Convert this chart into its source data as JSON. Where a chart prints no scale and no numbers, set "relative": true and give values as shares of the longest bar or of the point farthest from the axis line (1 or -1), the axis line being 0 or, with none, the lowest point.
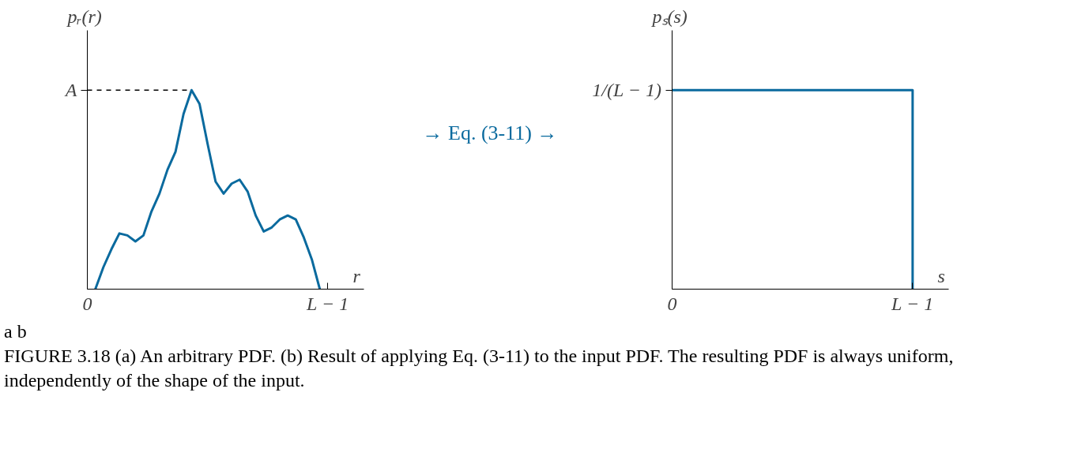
{
  "chart_data": [
    {
      "type": "line",
      "relative": true,
      "xlabel": "r",
      "ylabel": "pᵣ(r)",
      "categories": [
        "0",
        null,
        null,
        null,
        null,
        null,
        null,
        null,
        null,
        null,
        null,
        null,
        null,
        null,
        null,
        null,
        null,
        null,
        null,
        null,
        null,
        null,
        null,
        null,
        null,
        null,
        null,
        null,
        null,
        null,
        "L − 1"
      ],
      "series": [
        {
          "color": "#0a6a9e",
          "values": [
            null,
            0,
            0.11,
            0.2,
            0.28,
            0.27,
            0.24,
            0.27,
            0.39,
            0.48,
            0.6,
            0.69,
            0.88,
            1.0,
            0.93,
            0.73,
            0.54,
            0.48,
            0.53,
            0.55,
            0.49,
            0.37,
            0.29,
            0.31,
            0.35,
            0.37,
            0.35,
            0.26,
            0.15,
            0,
            null
          ]
        }
      ],
      "ref_lines": [
        {
          "axis": "y",
          "value": 1,
          "label": "A",
          "line_style": "dashed",
          "color": "#000000"
        }
      ],
      "annotations": [
        "→  Eq. (3-11)  →"
      ]
    },
    {
      "type": "step",
      "relative": true,
      "xlabel": "s",
      "ylabel": "pₛ(s)",
      "categories": [
        "0",
        "L − 1"
      ],
      "series": [
        {
          "color": "#0a6a9e",
          "values": [
            1,
            0
          ]
        }
      ],
      "annotations": [
        {
          "text": "1/(L − 1)",
          "x": "0",
          "y": 1
        },
        "a b",
        "FIGURE 3.18 (a) An arbitrary PDF. (b) Result of applying Eq. (3-11) to the input PDF. The resulting PDF is always uniform, independently of the shape of the input."
      ]
    }
  ]
}
